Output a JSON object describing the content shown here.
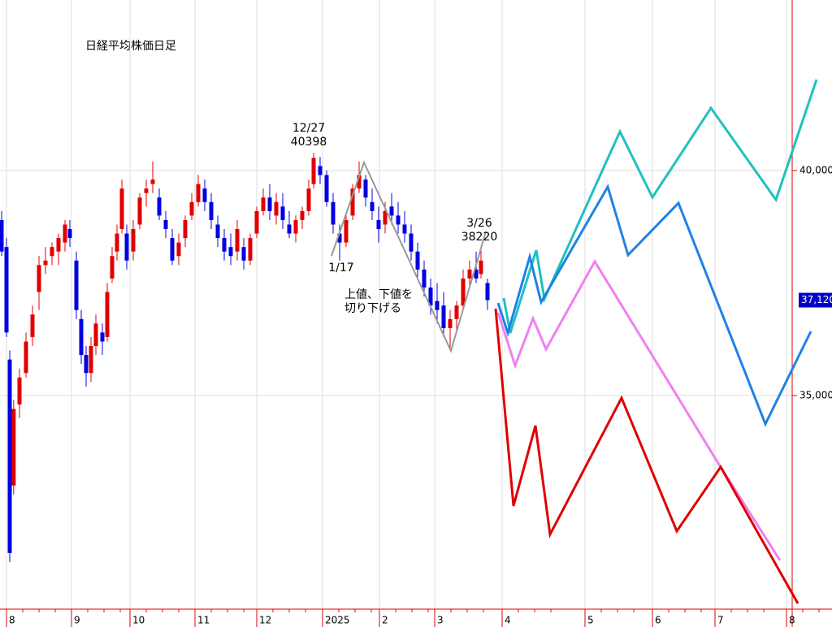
{
  "chart_data": {
    "type": "candlestick",
    "title": "日経平均株価日足",
    "xlim": [
      -0.1,
      12.7
    ],
    "ylim": [
      30252,
      43791
    ],
    "xticks": [
      {
        "value": 0,
        "label": "8"
      },
      {
        "value": 1,
        "label": "9"
      },
      {
        "value": 1.9,
        "label": "10"
      },
      {
        "value": 2.9,
        "label": "11"
      },
      {
        "value": 3.85,
        "label": "12"
      },
      {
        "value": 4.8625,
        "label": "2025"
      },
      {
        "value": 5.7375,
        "label": "2"
      },
      {
        "value": 6.5875,
        "label": "3"
      },
      {
        "value": 7.625,
        "label": "4"
      },
      {
        "value": 8.9,
        "label": "5"
      },
      {
        "value": 9.9375,
        "label": "6"
      },
      {
        "value": 10.9,
        "label": "7"
      },
      {
        "value": 12,
        "label": "8"
      }
    ],
    "yticks": [
      {
        "value": 35000,
        "label": "35,000"
      },
      {
        "value": 40000,
        "label": "40,000"
      }
    ],
    "grid": true,
    "up_color": "#e00000",
    "down_color": "#0000e0",
    "candles": {
      "x": [
        -0.075,
        0,
        0.05,
        0.11,
        0.2,
        0.3,
        0.4,
        0.5,
        0.6,
        0.7,
        0.8,
        0.9,
        0.975,
        1.075,
        1.15,
        1.225,
        1.3,
        1.375,
        1.475,
        1.55,
        1.625,
        1.7,
        1.775,
        1.85,
        1.95,
        2.05,
        2.15,
        2.25,
        2.35,
        2.45,
        2.55,
        2.65,
        2.75,
        2.85,
        2.95,
        3.05,
        3.15,
        3.25,
        3.35,
        3.45,
        3.55,
        3.65,
        3.75,
        3.85,
        3.95,
        4.05,
        4.15,
        4.25,
        4.35,
        4.45,
        4.55,
        4.65,
        4.725,
        4.825,
        4.925,
        5.025,
        5.125,
        5.225,
        5.325,
        5.425,
        5.525,
        5.625,
        5.725,
        5.825,
        5.925,
        6.025,
        6.125,
        6.225,
        6.325,
        6.425,
        6.525,
        6.625,
        6.725,
        6.825,
        6.925,
        7.025,
        7.125,
        7.225,
        7.3,
        7.4
      ],
      "open": [
        38900,
        38300,
        35800,
        33000,
        34800,
        35500,
        36300,
        37300,
        37900,
        38100,
        38200,
        38400,
        38700,
        38000,
        36700,
        35900,
        35500,
        36100,
        36400,
        36300,
        37600,
        38200,
        38700,
        38600,
        38200,
        38800,
        39500,
        39700,
        39400,
        38900,
        38500,
        38100,
        38500,
        39000,
        39300,
        39600,
        39300,
        38800,
        38500,
        38300,
        38200,
        38300,
        38000,
        38600,
        39100,
        39400,
        39000,
        39200,
        38800,
        38600,
        38900,
        39100,
        39700,
        40100,
        39900,
        39300,
        38600,
        38400,
        39000,
        39600,
        39800,
        39300,
        38900,
        38800,
        39200,
        39000,
        38800,
        38600,
        38200,
        37800,
        37400,
        37100,
        37000,
        36500,
        36700,
        37000,
        37600,
        37800,
        37700,
        37500
      ],
      "high": [
        39100,
        38500,
        36000,
        34900,
        35600,
        36400,
        37000,
        38100,
        38300,
        38400,
        38600,
        38900,
        38900,
        38200,
        36900,
        36100,
        36300,
        36800,
        36600,
        37500,
        38300,
        38800,
        39800,
        38800,
        38900,
        39500,
        39800,
        40200,
        39600,
        39100,
        38700,
        38600,
        39000,
        39500,
        39900,
        39800,
        39500,
        39000,
        38700,
        38600,
        38900,
        38500,
        38600,
        39200,
        39600,
        39700,
        39500,
        39500,
        39100,
        39000,
        39200,
        39800,
        40398,
        40300,
        40000,
        39500,
        38800,
        39000,
        39700,
        40200,
        39900,
        39600,
        39200,
        39300,
        39500,
        39300,
        39100,
        38800,
        38400,
        38000,
        37600,
        37500,
        37300,
        36900,
        37100,
        37800,
        38000,
        38200,
        38220,
        37600
      ],
      "low": [
        38100,
        36300,
        31300,
        32800,
        34500,
        35400,
        36100,
        36900,
        37700,
        37900,
        37900,
        38200,
        38300,
        36700,
        35700,
        35200,
        35300,
        35900,
        35900,
        36200,
        37500,
        38000,
        38600,
        37800,
        38000,
        38700,
        39200,
        39500,
        38900,
        38500,
        37900,
        37900,
        38300,
        38900,
        39200,
        39100,
        38700,
        38300,
        38000,
        37900,
        38000,
        37800,
        37900,
        38500,
        39000,
        38900,
        38800,
        38700,
        38500,
        38400,
        38700,
        39000,
        39600,
        39700,
        39200,
        38600,
        38000,
        38300,
        38900,
        39500,
        39200,
        38900,
        38400,
        38600,
        38800,
        38600,
        38400,
        38000,
        37600,
        37200,
        36800,
        36600,
        36300,
        36000,
        36400,
        36900,
        37400,
        37500,
        37600,
        36900
      ],
      "close": [
        38200,
        36400,
        31500,
        34700,
        35400,
        36200,
        36800,
        37900,
        38000,
        38300,
        38500,
        38800,
        38500,
        36900,
        35900,
        35500,
        36100,
        36600,
        36200,
        37300,
        38100,
        38600,
        39600,
        38000,
        38700,
        39400,
        39600,
        39800,
        39000,
        38700,
        38000,
        38400,
        38900,
        39300,
        39700,
        39300,
        38900,
        38500,
        38200,
        38100,
        38700,
        38000,
        38500,
        39100,
        39400,
        39100,
        39300,
        38900,
        38600,
        38900,
        39100,
        39600,
        40281,
        39900,
        39300,
        38800,
        38400,
        38900,
        39600,
        39900,
        39400,
        39100,
        38700,
        39100,
        39000,
        38800,
        38600,
        38200,
        37800,
        37400,
        37000,
        36900,
        36500,
        36700,
        37000,
        37600,
        37800,
        37600,
        38000,
        37120
      ]
    },
    "lines": [
      {
        "color": "#999999",
        "x": [
          5.0,
          5.5,
          6.8375,
          7.375
        ],
        "values": [
          38105,
          40181,
          35993,
          38646
        ]
      },
      {
        "color": "#20c0c0",
        "x": [
          7.65,
          7.75,
          8.15,
          8.275,
          9.4375,
          9.9375,
          10.8375,
          11.8375,
          12.4625
        ],
        "values": [
          37166,
          36390,
          38231,
          37148,
          40866,
          39404,
          41390,
          39350,
          42022
        ]
      },
      {
        "color": "#1e82e6",
        "x": [
          7.5625,
          7.7125,
          8.05,
          8.225,
          9.25,
          9.5625,
          10.3375,
          11.675,
          12.375
        ],
        "values": [
          37058,
          36390,
          38087,
          37076,
          39639,
          38123,
          39278,
          34368,
          36426
        ]
      },
      {
        "color": "#f080f0",
        "x": [
          7.5625,
          7.825,
          8.1,
          8.3,
          9.05,
          10.9625,
          11.9
        ],
        "values": [
          36841,
          35668,
          36715,
          36029,
          37978,
          33466,
          31335
        ]
      },
      {
        "color": "#e00000",
        "x": [
          7.525,
          7.8,
          8.1375,
          8.3625,
          9.4625,
          10.3125,
          10.9875,
          12.175
        ],
        "values": [
          36931,
          32545,
          34332,
          31913,
          34946,
          31985,
          33411,
          30379
        ]
      }
    ],
    "last_price": {
      "value": 37120,
      "label": "37,120"
    },
    "annotations": [
      {
        "lines": [
          "12/27",
          "40398"
        ]
      },
      {
        "lines": [
          "1/17"
        ]
      },
      {
        "lines": [
          "3/26",
          "38220"
        ]
      },
      {
        "lines": [
          "上値、下値を",
          "切り下げる"
        ]
      }
    ]
  }
}
